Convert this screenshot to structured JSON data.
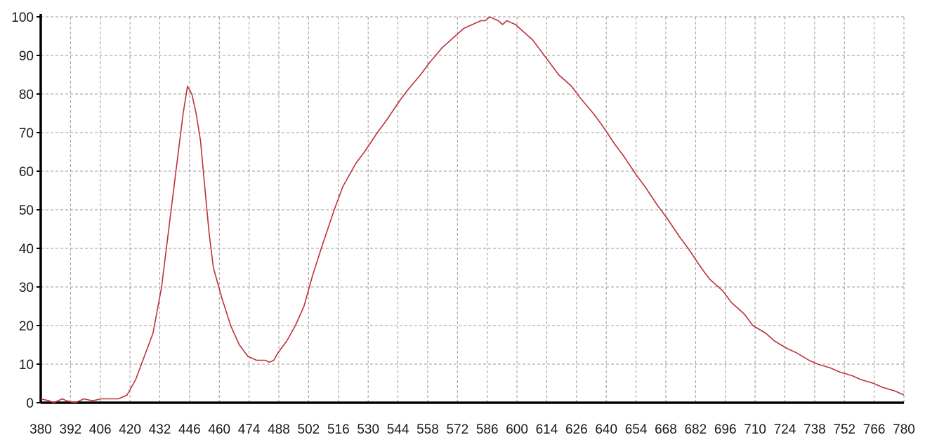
{
  "chart_data": {
    "type": "line",
    "title": "",
    "xlabel": "",
    "ylabel": "",
    "xlim": [
      380,
      780
    ],
    "ylim": [
      0,
      100
    ],
    "grid": true,
    "legend": "none",
    "x_ticks": [
      "380",
      "392",
      "406",
      "420",
      "432",
      "446",
      "460",
      "474",
      "488",
      "502",
      "516",
      "530",
      "544",
      "558",
      "572",
      "586",
      "600",
      "614",
      "626",
      "640",
      "654",
      "668",
      "682",
      "696",
      "710",
      "724",
      "738",
      "752",
      "766",
      "780"
    ],
    "y_ticks": [
      "0",
      "10",
      "20",
      "30",
      "40",
      "50",
      "60",
      "70",
      "80",
      "90",
      "100"
    ],
    "series": [
      {
        "color": "#c0303a",
        "x": [
          380,
          384,
          386,
          390,
          392,
          396,
          400,
          404,
          408,
          412,
          416,
          420,
          424,
          428,
          432,
          436,
          440,
          444,
          446,
          448,
          450,
          452,
          454,
          456,
          458,
          460,
          464,
          468,
          472,
          476,
          480,
          484,
          486,
          488,
          490,
          494,
          498,
          502,
          506,
          510,
          516,
          520,
          526,
          530,
          536,
          540,
          546,
          550,
          556,
          560,
          566,
          570,
          576,
          580,
          584,
          586,
          588,
          590,
          592,
          594,
          596,
          598,
          600,
          604,
          608,
          612,
          616,
          620,
          626,
          630,
          636,
          640,
          646,
          650,
          656,
          660,
          666,
          670,
          676,
          680,
          686,
          690,
          696,
          700,
          706,
          710,
          716,
          720,
          726,
          730,
          736,
          740,
          746,
          750,
          756,
          760,
          766,
          770,
          776,
          780
        ],
        "y": [
          1,
          0.5,
          0,
          1,
          0.5,
          0,
          1,
          0.5,
          1,
          1,
          1,
          2,
          6,
          12,
          18,
          30,
          48,
          66,
          75,
          82,
          80,
          75,
          68,
          56,
          44,
          35,
          27,
          20,
          15,
          12,
          11,
          11,
          10.5,
          11,
          13,
          16,
          20,
          25,
          33,
          40,
          50,
          56,
          62,
          65,
          70,
          73,
          78,
          81,
          85,
          88,
          92,
          94,
          97,
          98,
          99,
          99,
          100,
          99.5,
          99,
          98,
          99,
          98.5,
          98,
          96,
          94,
          91,
          88,
          85,
          82,
          79,
          75,
          72,
          67,
          64,
          59,
          56,
          51,
          48,
          43,
          40,
          35,
          32,
          29,
          26,
          23,
          20,
          18,
          16,
          14,
          13,
          11,
          10,
          9,
          8,
          7,
          6,
          5,
          4,
          3,
          2
        ]
      }
    ]
  }
}
